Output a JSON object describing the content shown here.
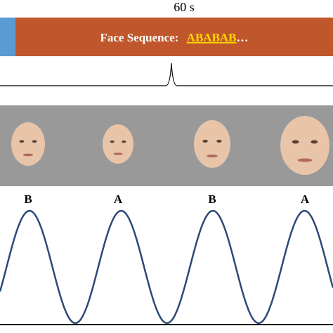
{
  "time_label": "60 s",
  "sequence": {
    "label": "Face Sequence:",
    "pattern": "ABABAB",
    "ellipsis": "…"
  },
  "faces": [
    {
      "label": "B"
    },
    {
      "label": "A"
    },
    {
      "label": "B"
    },
    {
      "label": "A"
    }
  ]
}
